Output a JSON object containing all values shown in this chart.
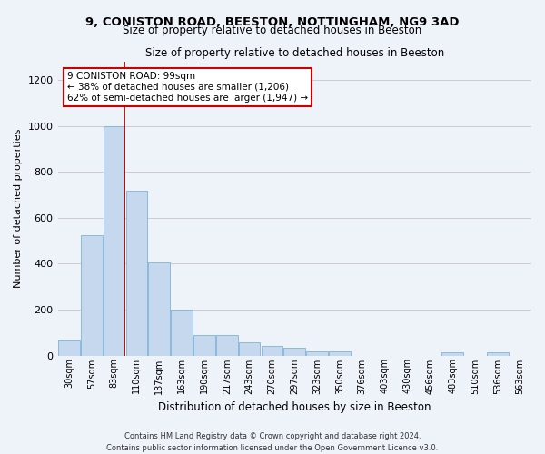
{
  "title_line1": "9, CONISTON ROAD, BEESTON, NOTTINGHAM, NG9 3AD",
  "title_line2": "Size of property relative to detached houses in Beeston",
  "xlabel": "Distribution of detached houses by size in Beeston",
  "ylabel": "Number of detached properties",
  "footer_line1": "Contains HM Land Registry data © Crown copyright and database right 2024.",
  "footer_line2": "Contains public sector information licensed under the Open Government Licence v3.0.",
  "categories": [
    "30sqm",
    "57sqm",
    "83sqm",
    "110sqm",
    "137sqm",
    "163sqm",
    "190sqm",
    "217sqm",
    "243sqm",
    "270sqm",
    "297sqm",
    "323sqm",
    "350sqm",
    "376sqm",
    "403sqm",
    "430sqm",
    "456sqm",
    "483sqm",
    "510sqm",
    "536sqm",
    "563sqm"
  ],
  "values": [
    70,
    525,
    1000,
    720,
    405,
    198,
    90,
    90,
    58,
    40,
    32,
    18,
    18,
    0,
    0,
    0,
    0,
    12,
    0,
    12,
    0
  ],
  "bar_color": "#c5d8ed",
  "bar_edge_color": "#7fb3d9",
  "grid_color": "#cccccc",
  "subject_line_color": "#8b0000",
  "annotation_text": "9 CONISTON ROAD: 99sqm\n← 38% of detached houses are smaller (1,206)\n62% of semi-detached houses are larger (1,947) →",
  "annotation_box_color": "#ffffff",
  "annotation_box_edge_color": "#cc0000",
  "ylim": [
    0,
    1280
  ],
  "yticks": [
    0,
    200,
    400,
    600,
    800,
    1000,
    1200
  ],
  "background_color": "#eef2f9"
}
